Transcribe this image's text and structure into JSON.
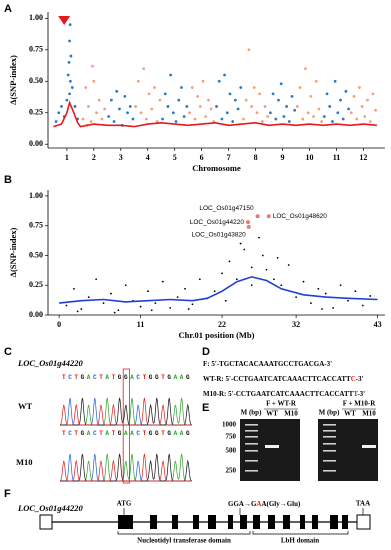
{
  "panel_labels": [
    "A",
    "B",
    "C",
    "D",
    "E",
    "F"
  ],
  "chart_data": [
    {
      "type": "scatter",
      "ylabel": "Δ(SNP-index)",
      "xlabel": "Chromosome",
      "xlim": [
        -0.2,
        12.3
      ],
      "ylim": [
        -0.03,
        1.05
      ],
      "xticks": [
        {
          "value": 0.5,
          "label": "1"
        },
        {
          "value": 1.5,
          "label": "2"
        },
        {
          "value": 2.5,
          "label": "3"
        },
        {
          "value": 3.5,
          "label": "4"
        },
        {
          "value": 4.5,
          "label": "5"
        },
        {
          "value": 5.5,
          "label": "6"
        },
        {
          "value": 6.5,
          "label": "7"
        },
        {
          "value": 7.5,
          "label": "8"
        },
        {
          "value": 8.5,
          "label": "9"
        },
        {
          "value": 9.5,
          "label": "10"
        },
        {
          "value": 10.5,
          "label": "11"
        },
        {
          "value": 11.5,
          "label": "12"
        }
      ],
      "yticks": [
        {
          "value": 0,
          "label": "0.00"
        },
        {
          "value": 0.25,
          "label": "0.25"
        },
        {
          "value": 0.5,
          "label": "0.50"
        },
        {
          "value": 0.75,
          "label": "0.75"
        },
        {
          "value": 1,
          "label": "1.00"
        }
      ],
      "series": [
        {
          "type": "scatter",
          "color": "#2b7bbf",
          "x": [
            0.1,
            0.2,
            0.3,
            0.4,
            0.5,
            0.55,
            0.6,
            0.62,
            0.65,
            0.7,
            0.8,
            0.9,
            0.58,
            0.63,
            0.6
          ],
          "y": [
            0.18,
            0.25,
            0.3,
            0.22,
            0.35,
            0.55,
            0.82,
            0.95,
            0.7,
            0.45,
            0.3,
            0.2,
            0.65,
            0.5,
            0.4
          ]
        },
        {
          "type": "scatter",
          "color": "#f4a07a",
          "x": [
            1.1,
            1.2,
            1.3,
            1.4,
            1.5,
            1.6,
            1.7,
            1.8,
            1.9,
            1.45,
            1.25
          ],
          "y": [
            0.2,
            0.45,
            0.3,
            0.18,
            0.5,
            0.25,
            0.35,
            0.2,
            0.28,
            0.62,
            0.15
          ]
        },
        {
          "type": "scatter",
          "color": "#2b7bbf",
          "x": [
            2.05,
            2.15,
            2.25,
            2.35,
            2.45,
            2.55,
            2.65,
            2.75,
            2.85,
            2.95
          ],
          "y": [
            0.22,
            0.35,
            0.18,
            0.42,
            0.28,
            0.15,
            0.38,
            0.25,
            0.3,
            0.2
          ]
        },
        {
          "type": "scatter",
          "color": "#f4a07a",
          "x": [
            3.05,
            3.15,
            3.25,
            3.35,
            3.45,
            3.55,
            3.65,
            3.75,
            3.85,
            3.95
          ],
          "y": [
            0.3,
            0.5,
            0.25,
            0.6,
            0.2,
            0.4,
            0.28,
            0.45,
            0.18,
            0.35
          ]
        },
        {
          "type": "scatter",
          "color": "#2b7bbf",
          "x": [
            4.05,
            4.15,
            4.25,
            4.35,
            4.45,
            4.55,
            4.65,
            4.75,
            4.85,
            4.95
          ],
          "y": [
            0.2,
            0.4,
            0.3,
            0.55,
            0.25,
            0.18,
            0.35,
            0.45,
            0.22,
            0.3
          ]
        },
        {
          "type": "scatter",
          "color": "#f4a07a",
          "x": [
            5.05,
            5.15,
            5.25,
            5.35,
            5.45,
            5.55,
            5.65,
            5.75,
            5.85,
            5.95
          ],
          "y": [
            0.25,
            0.45,
            0.2,
            0.38,
            0.3,
            0.5,
            0.22,
            0.35,
            0.28,
            0.18
          ]
        },
        {
          "type": "scatter",
          "color": "#2b7bbf",
          "x": [
            6.05,
            6.15,
            6.25,
            6.35,
            6.45,
            6.55,
            6.65,
            6.75,
            6.85,
            6.95
          ],
          "y": [
            0.3,
            0.5,
            0.2,
            0.55,
            0.25,
            0.4,
            0.18,
            0.35,
            0.28,
            0.45
          ]
        },
        {
          "type": "scatter",
          "color": "#f4a07a",
          "x": [
            7.05,
            7.15,
            7.25,
            7.35,
            7.45,
            7.55,
            7.65,
            7.75,
            7.85,
            7.95
          ],
          "y": [
            0.2,
            0.35,
            0.75,
            0.3,
            0.45,
            0.25,
            0.4,
            0.18,
            0.3,
            0.22
          ]
        },
        {
          "type": "scatter",
          "color": "#2b7bbf",
          "x": [
            8.05,
            8.15,
            8.25,
            8.35,
            8.45,
            8.55,
            8.65,
            8.75,
            8.85,
            8.95
          ],
          "y": [
            0.25,
            0.4,
            0.2,
            0.35,
            0.48,
            0.22,
            0.3,
            0.18,
            0.38,
            0.27
          ]
        },
        {
          "type": "scatter",
          "color": "#f4a07a",
          "x": [
            9.05,
            9.15,
            9.25,
            9.35,
            9.45,
            9.55,
            9.65,
            9.75,
            9.85,
            9.95
          ],
          "y": [
            0.3,
            0.45,
            0.2,
            0.6,
            0.25,
            0.38,
            0.22,
            0.5,
            0.28,
            0.18
          ]
        },
        {
          "type": "scatter",
          "color": "#2b7bbf",
          "x": [
            10.05,
            10.15,
            10.25,
            10.35,
            10.45,
            10.55,
            10.65,
            10.75,
            10.85,
            10.95
          ],
          "y": [
            0.22,
            0.4,
            0.3,
            0.18,
            0.5,
            0.25,
            0.35,
            0.2,
            0.42,
            0.28
          ]
        },
        {
          "type": "scatter",
          "color": "#f4a07a",
          "x": [
            11.05,
            11.15,
            11.25,
            11.35,
            11.45,
            11.55,
            11.65,
            11.75,
            11.85,
            11.95
          ],
          "y": [
            0.25,
            0.38,
            0.2,
            0.45,
            0.3,
            0.22,
            0.35,
            0.18,
            0.4,
            0.27
          ]
        },
        {
          "type": "line",
          "color": "#e41a1c",
          "x": [
            0,
            0.3,
            0.5,
            0.6,
            0.7,
            0.9,
            1,
            1.5,
            2,
            2.5,
            3,
            3.5,
            4,
            4.5,
            5,
            5.5,
            6,
            6.5,
            7,
            7.5,
            8,
            8.5,
            9,
            9.5,
            10,
            10.5,
            11,
            11.5,
            12
          ],
          "y": [
            0.14,
            0.16,
            0.25,
            0.33,
            0.28,
            0.17,
            0.14,
            0.16,
            0.15,
            0.15,
            0.14,
            0.16,
            0.17,
            0.16,
            0.15,
            0.16,
            0.17,
            0.15,
            0.16,
            0.17,
            0.15,
            0.16,
            0.15,
            0.16,
            0.15,
            0.16,
            0.15,
            0.16,
            0.15
          ]
        }
      ]
    },
    {
      "type": "scatter",
      "ylabel": "Δ(SNP-index)",
      "xlabel": "Chr.01 position (Mb)",
      "xlim": [
        -1.5,
        44
      ],
      "ylim": [
        0,
        1.05
      ],
      "xticks": [
        0,
        11,
        22,
        32,
        43
      ],
      "yticks": [
        {
          "value": 0,
          "label": "0.00"
        },
        {
          "value": 0.25,
          "label": "0.25"
        },
        {
          "value": 0.5,
          "label": "0.50"
        },
        {
          "value": 0.75,
          "label": "0.75"
        },
        {
          "value": 1,
          "label": "1.00"
        }
      ],
      "series": [
        {
          "type": "scatter",
          "color": "#000000",
          "x": [
            1,
            2,
            3,
            4,
            5,
            6,
            7,
            8,
            9,
            10,
            11,
            12,
            13,
            14,
            15,
            16,
            17,
            18,
            19,
            20,
            21,
            22,
            23,
            24,
            24.5,
            25,
            26,
            27,
            27.5,
            28,
            29,
            30,
            31,
            32,
            33,
            34,
            35,
            36,
            37,
            38,
            39,
            40,
            41,
            42,
            2.5,
            7.5,
            12.5,
            17.5,
            22.5,
            26,
            29.5,
            35.5
          ],
          "y": [
            0.08,
            0.22,
            0.05,
            0.15,
            0.3,
            0.1,
            0.18,
            0.04,
            0.25,
            0.12,
            0.07,
            0.2,
            0.1,
            0.28,
            0.06,
            0.15,
            0.22,
            0.09,
            0.3,
            0.14,
            0.2,
            0.35,
            0.45,
            0.3,
            0.6,
            0.55,
            0.4,
            0.65,
            0.5,
            0.38,
            0.3,
            0.25,
            0.42,
            0.15,
            0.28,
            0.1,
            0.22,
            0.18,
            0.06,
            0.25,
            0.12,
            0.2,
            0.08,
            0.16,
            0.03,
            0.02,
            0.04,
            0.05,
            0.12,
            0.25,
            0.48,
            0.05
          ]
        },
        {
          "type": "line",
          "color": "#1f3fd6",
          "x": [
            0,
            3,
            6,
            9,
            12,
            15,
            18,
            20,
            22,
            24,
            26,
            28,
            30,
            33,
            36,
            39,
            43
          ],
          "y": [
            0.1,
            0.12,
            0.13,
            0.11,
            0.12,
            0.13,
            0.12,
            0.14,
            0.2,
            0.28,
            0.32,
            0.29,
            0.22,
            0.17,
            0.15,
            0.14,
            0.13
          ]
        },
        {
          "type": "scatter",
          "color": "#e8787a",
          "x": [
            26.8,
            28.3,
            25.5,
            25.6
          ],
          "y": [
            0.83,
            0.83,
            0.78,
            0.74
          ],
          "labels": [
            "LOC_Os01g47150",
            "LOC_Os01g48620",
            "LOC_Os01g44220",
            "LOC_Os01g43820"
          ]
        }
      ]
    }
  ],
  "sequencing": {
    "gene": "LOC_Os01g44220",
    "rows": [
      {
        "label": "WT",
        "sequence": "TCTGACTATGGACTGGTGAAG"
      },
      {
        "label": "M10",
        "sequence": "TCTGACTATGAACTGGTGAAG"
      }
    ]
  },
  "primers": [
    {
      "name": "F:",
      "seq": "5'-TGCTACACAAATGCCTGACGA-3'"
    },
    {
      "name": "WT-R:",
      "seq": "5'-CCTGAATCATCAAACTTCACCATT",
      "highlight": "C",
      "end": "-3'"
    },
    {
      "name": "M10-R:",
      "seq": "5'-CCTGAATCATCAAACTTCACCATT",
      "highlight": "T",
      "end": "-3'"
    }
  ],
  "gel": {
    "ladder_title": "M (bp)",
    "ladder": [
      "1000",
      "750",
      "500",
      "250"
    ],
    "groups": [
      {
        "title": "F + WT-R",
        "lanes": [
          "WT",
          "M10"
        ]
      },
      {
        "title": "F + M10-R",
        "lanes": [
          "WT",
          "M10"
        ]
      }
    ]
  },
  "gene": {
    "name": "LOC_Os01g44220",
    "start": "ATG",
    "stop": "TAA",
    "mutation": [
      "GGA→G",
      "A",
      "A(Gly→Glu)"
    ],
    "domains": [
      "Nucleotidyl transferase domain",
      "LbH domain"
    ]
  }
}
